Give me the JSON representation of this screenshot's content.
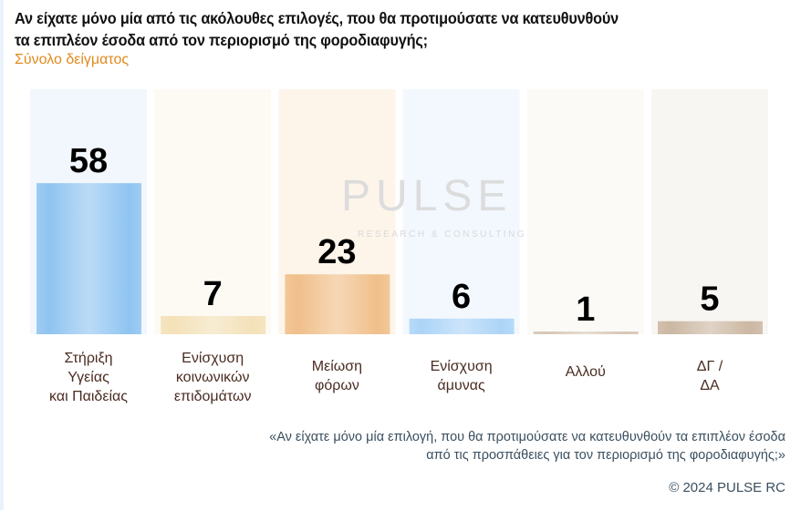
{
  "header": {
    "title": "Αν είχατε μόνο μία από τις ακόλουθες επιλογές, που θα προτιμούσατε να κατευθυνθούν τα επιπλέον έσοδα από τον περιορισμό της φοροδιαφυγής;",
    "subtitle": "Σύνολο δείγματος"
  },
  "watermark": {
    "brand": "PULSE",
    "tagline": "RESEARCH & CONSULTING"
  },
  "chart_data": {
    "type": "bar",
    "title": "Αν είχατε μόνο μία από τις ακόλουθες επιλογές, που θα προτιμούσατε να κατευθυνθούν τα επιπλέον έσοδα από τον περιορισμό της φοροδιαφυγής;",
    "subtitle": "Σύνολο δείγματος",
    "categories": [
      "Στήριξη Υγείας και Παιδείας",
      "Ενίσχυση κοινωνικών επιδομάτων",
      "Μείωση φόρων",
      "Ενίσχυση άμυνας",
      "Αλλού",
      "ΔΓ / ΔΑ"
    ],
    "category_lines": [
      [
        "Στήριξη",
        "Υγείας",
        "και Παιδείας"
      ],
      [
        "Ενίσχυση",
        "κοινωνικών",
        "επιδομάτων"
      ],
      [
        "Μείωση",
        "φόρων"
      ],
      [
        "Ενίσχυση",
        "άμυνας"
      ],
      [
        "Αλλού"
      ],
      [
        "ΔΓ /",
        "ΔΑ"
      ]
    ],
    "values": [
      58,
      7,
      23,
      6,
      1,
      5
    ],
    "value_labels": [
      "58",
      "7",
      "23",
      "6",
      "1",
      "5"
    ],
    "bar_colors": [
      "#8fc4f1",
      "#f3e1b8",
      "#f0bf8a",
      "#acd4f7",
      "#d6c6b4",
      "#cbb7a2"
    ],
    "column_bg_colors": [
      "#f1f7fd",
      "#fdfaf4",
      "#fdf5ea",
      "#f2f8fe",
      "#fbfaf7",
      "#f8f6f2"
    ],
    "ylim": [
      0,
      100
    ],
    "grid": false,
    "legend": "none",
    "xlabel": "",
    "ylabel": ""
  },
  "footer": {
    "note_line1": "«Αν είχατε μόνο μία επιλογή, που θα προτιμούσατε να κατευθυνθούν τα επιπλέον έσοδα",
    "note_line2": "από τις προσπάθειες για τον περιορισμό της φοροδιαφυγής;»",
    "copyright": "© 2024 PULSE RC"
  }
}
